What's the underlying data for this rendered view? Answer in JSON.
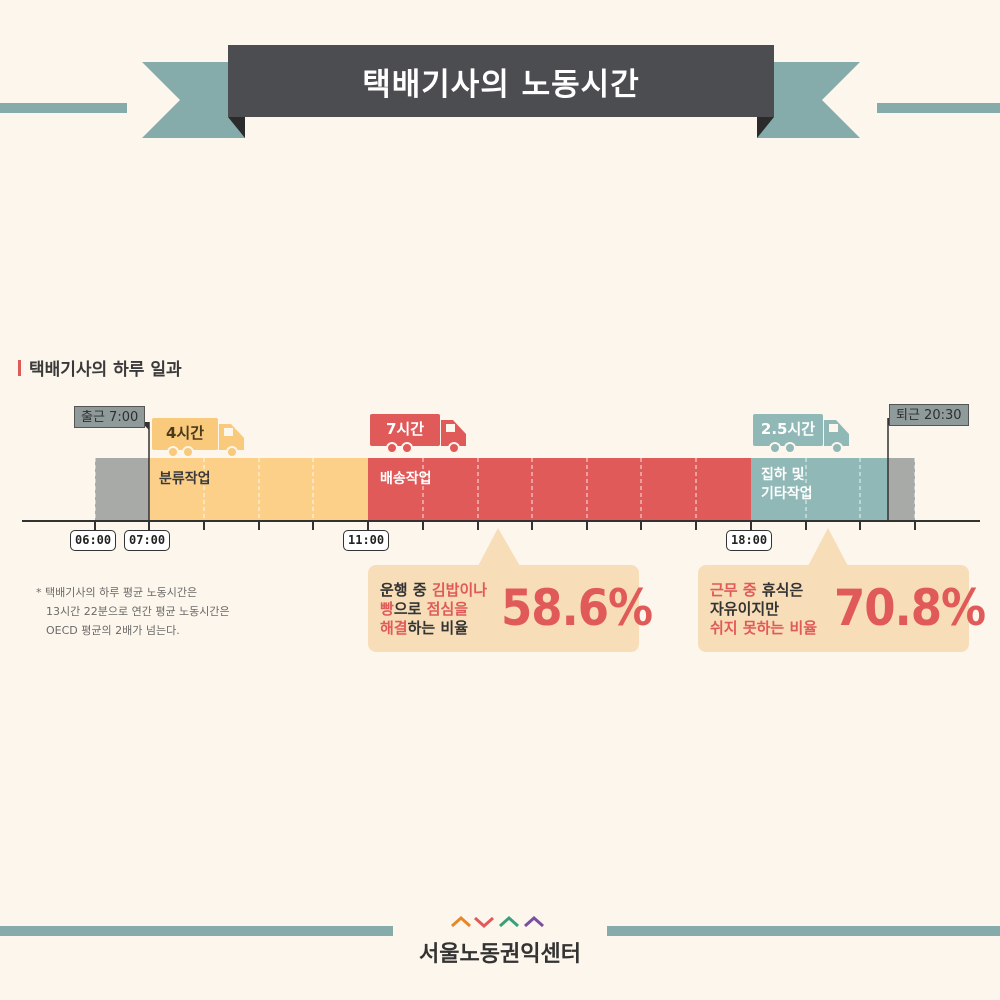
{
  "header": {
    "title": "택배기사의 노동시간"
  },
  "section": {
    "title": "택배기사의 하루 일과"
  },
  "markers": {
    "start": "출근 7:00",
    "end": "퇴근 20:30"
  },
  "trucks": [
    {
      "label": "4시간",
      "color": "#f9c97c"
    },
    {
      "label": "7시간",
      "color": "#e05a5a"
    },
    {
      "label": "2.5시간",
      "color": "#8fb8b6"
    }
  ],
  "segments": [
    {
      "label": "분류작업",
      "color": "#fdd08a"
    },
    {
      "label": "배송작업",
      "color": "#e05a5a"
    },
    {
      "label_line1": "집하 및",
      "label_line2": "기타작업",
      "color": "#8fb8b6"
    }
  ],
  "times": [
    "06:00",
    "07:00",
    "11:00",
    "18:00"
  ],
  "note": {
    "line1": "* 택배기사의 하루 평균 노동시간은",
    "line2": "13시간 22분으로 연간 평균 노동시간은",
    "line3": "OECD 평균의 2배가 넘는다."
  },
  "callouts": [
    {
      "l1a": "운행 중 ",
      "l1b": "김밥이나",
      "l2a": "빵",
      "l2b": "으로 ",
      "l2c": "점심을",
      "l3a": "해결",
      "l3b": "하는 비율",
      "value": "58.6%"
    },
    {
      "l1a": "근무 중 ",
      "l1b": "휴식은",
      "l2": "자유이지만",
      "l3": "쉬지 못하는 비율",
      "value": "70.8%"
    }
  ],
  "footer": {
    "org": "서울노동권익센터"
  },
  "colors": {
    "accent_red": "#e05a5a",
    "teal": "#86abab",
    "dark": "#4c4d50",
    "cream": "#fdf6ec"
  }
}
